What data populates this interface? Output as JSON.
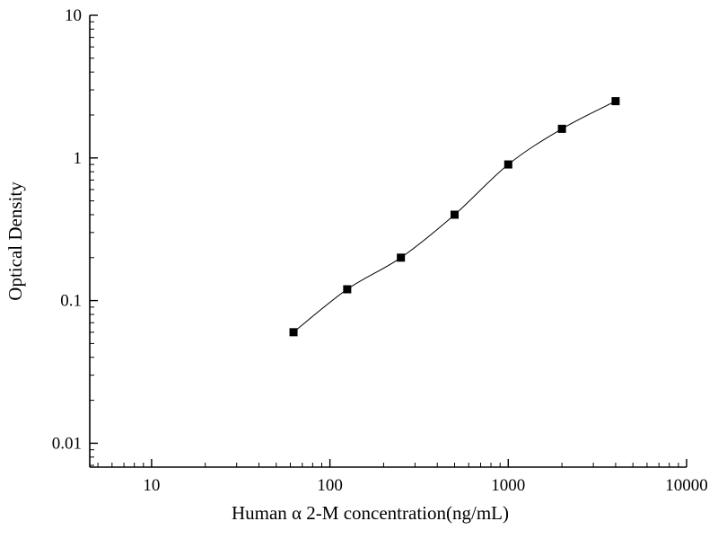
{
  "figure": {
    "background": "#ffffff",
    "line_color": "#000000",
    "marker_color": "#000000",
    "marker_shape": "filled-square"
  },
  "chart_data": {
    "type": "scatter",
    "title": "",
    "xlabel": "Human α 2-M concentration(ng/mL)",
    "ylabel": "Optical Density",
    "x_scale": "log",
    "y_scale": "log",
    "xlim": [
      4.5,
      10000
    ],
    "ylim": [
      0.0068,
      10
    ],
    "x_major_ticks": [
      10,
      100,
      1000,
      10000
    ],
    "x_tick_labels": [
      "10",
      "100",
      "1000",
      "10000"
    ],
    "y_major_ticks": [
      0.01,
      0.1,
      1,
      10
    ],
    "y_tick_labels": [
      "0.01",
      "0.1",
      "1",
      "10"
    ],
    "grid": false,
    "legend": null,
    "curve": "smooth-fit-through-points",
    "series": [
      {
        "name": "standard-curve",
        "x": [
          62.5,
          125,
          250,
          500,
          1000,
          2000,
          4000
        ],
        "y": [
          0.06,
          0.12,
          0.2,
          0.4,
          0.9,
          1.6,
          2.5
        ]
      }
    ]
  }
}
